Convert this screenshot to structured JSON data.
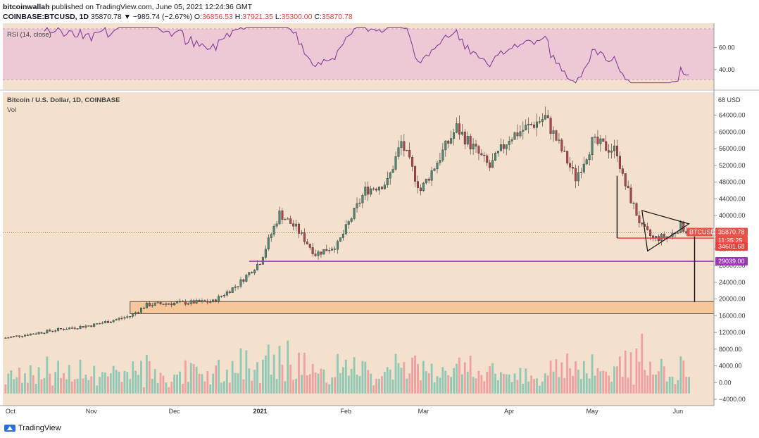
{
  "header": {
    "line1_author": "bitcoinwallah",
    "line1_rest": " published on TradingView.com, June 05, 2021 12:24:36 GMT",
    "symbol": "COINBASE:BTCUSD, 1D",
    "last": "35870.78",
    "change": "▼ −985.74 (−2.67%)",
    "o_label": "O:",
    "o": "36856.53",
    "h_label": "H:",
    "h": "37921.35",
    "l_label": "L:",
    "l": "35300.00",
    "c_label": "C:",
    "c": "35870.78"
  },
  "rsi_pane": {
    "label": "RSI (14, close)",
    "ticks": [
      "60.00",
      "40.00"
    ],
    "tick_values": [
      60,
      40
    ],
    "band": [
      30,
      70
    ],
    "ylim": [
      22,
      82
    ]
  },
  "price_pane": {
    "title": "Bitcoin / U.S. Dollar, 1D, COINBASE",
    "vol_label": "Vol",
    "top_label": "68 USD",
    "ticks": [
      "64000.00",
      "60000.00",
      "56000.00",
      "52000.00",
      "48000.00",
      "44000.00",
      "40000.00",
      "36000.00",
      "32000.00",
      "28000.00",
      "24000.00",
      "20000.00",
      "16000.00",
      "12000.00",
      "8000.00",
      "4000.00",
      "0.00",
      "−4000.00"
    ],
    "tick_values": [
      64000,
      60000,
      56000,
      52000,
      48000,
      44000,
      40000,
      36000,
      32000,
      28000,
      24000,
      20000,
      16000,
      12000,
      8000,
      4000,
      0,
      -4000
    ],
    "badge_symbol": "BTCUSD",
    "badge_price": "35870.78",
    "badge_time": "11:35:25",
    "badge_support": "34601.68",
    "badge_level": "29039.00"
  },
  "x_axis": {
    "labels": [
      "Oct",
      "Nov",
      "Dec",
      "2021",
      "Feb",
      "Mar",
      "Apr",
      "May",
      "Jun"
    ]
  },
  "colors": {
    "up": "#4a8a74",
    "down": "#b84048",
    "pane_bg": "#f3e0cd",
    "rsi_bg": "#ecc9d4",
    "rsi_line": "#8a3c9e",
    "support": "#e8403a",
    "level": "#9b36b8",
    "zone": "#f5c79a",
    "vol_up": "#8fc9b6",
    "vol_down": "#f0a0a0"
  },
  "chart_data": {
    "type": "candlestick",
    "title": "Bitcoin / U.S. Dollar, 1D, COINBASE",
    "x_range": [
      "2020-10-01",
      "2021-06-05"
    ],
    "ylim": [
      -4000,
      68000
    ],
    "series": [
      {
        "name": "BTCUSD",
        "close_path": [
          [
            "2020-10-01",
            10700
          ],
          [
            "2020-10-21",
            12800
          ],
          [
            "2020-11-01",
            13700
          ],
          [
            "2020-11-15",
            15900
          ],
          [
            "2020-11-21",
            18600
          ],
          [
            "2020-11-30",
            19000
          ],
          [
            "2020-12-15",
            19400
          ],
          [
            "2020-12-24",
            23500
          ],
          [
            "2021-01-01",
            29000
          ],
          [
            "2021-01-08",
            40500
          ],
          [
            "2021-01-14",
            37000
          ],
          [
            "2021-01-21",
            30800
          ],
          [
            "2021-01-29",
            33000
          ],
          [
            "2021-02-08",
            46000
          ],
          [
            "2021-02-16",
            48000
          ],
          [
            "2021-02-21",
            57500
          ],
          [
            "2021-02-28",
            46000
          ],
          [
            "2021-03-13",
            61000
          ],
          [
            "2021-03-25",
            51500
          ],
          [
            "2021-04-01",
            58700
          ],
          [
            "2021-04-14",
            63500
          ],
          [
            "2021-04-25",
            49000
          ],
          [
            "2021-05-01",
            57500
          ],
          [
            "2021-05-10",
            55500
          ],
          [
            "2021-05-12",
            49000
          ],
          [
            "2021-05-19",
            37000
          ],
          [
            "2021-05-23",
            34500
          ],
          [
            "2021-05-29",
            35000
          ],
          [
            "2021-06-02",
            37500
          ],
          [
            "2021-06-05",
            35870.78
          ]
        ]
      },
      {
        "name": "RSI (14, close)",
        "values_range": [
          28,
          78
        ]
      }
    ],
    "annotations": {
      "support": 34601.68,
      "level": 29039.0,
      "zone": [
        16500,
        19400
      ],
      "triangle": [
        [
          "2021-05-19",
          41200
        ],
        [
          "2021-06-05",
          38000
        ],
        [
          "2021-05-21",
          31500
        ]
      ]
    }
  }
}
